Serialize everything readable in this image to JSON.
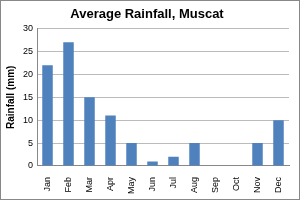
{
  "chart_data": {
    "type": "bar",
    "title": "Average Rainfall, Muscat",
    "y_label": "Rainfall (mm)",
    "categories": [
      "Jan",
      "Feb",
      "Mar",
      "Apr",
      "May",
      "Jun",
      "Jul",
      "Aug",
      "Sep",
      "Oct",
      "Nov",
      "Dec"
    ],
    "values": [
      22,
      27,
      15,
      11,
      5,
      1,
      2,
      5,
      0,
      0,
      5,
      10
    ],
    "color": "#4f81bd",
    "ylim": [
      0,
      30
    ],
    "yticks": [
      0,
      5,
      10,
      15,
      20,
      25,
      30
    ],
    "grid": true
  }
}
